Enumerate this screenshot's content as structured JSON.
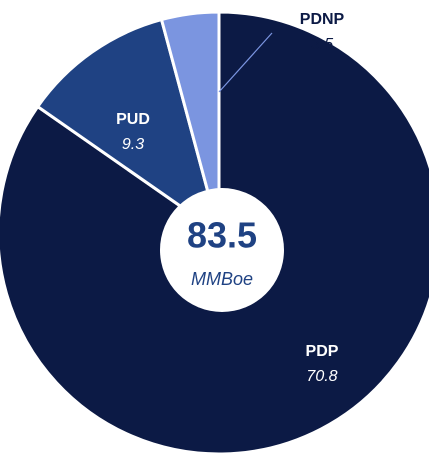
{
  "chart_data": {
    "type": "donut",
    "categories": [
      "PDP",
      "PUD",
      "PDNP"
    ],
    "values": [
      70.8,
      9.3,
      3.5
    ],
    "colors": [
      "#0c1a45",
      "#1f4283",
      "#7b95e0"
    ],
    "total": 83.5,
    "total_unit": "MMBoe"
  }
}
